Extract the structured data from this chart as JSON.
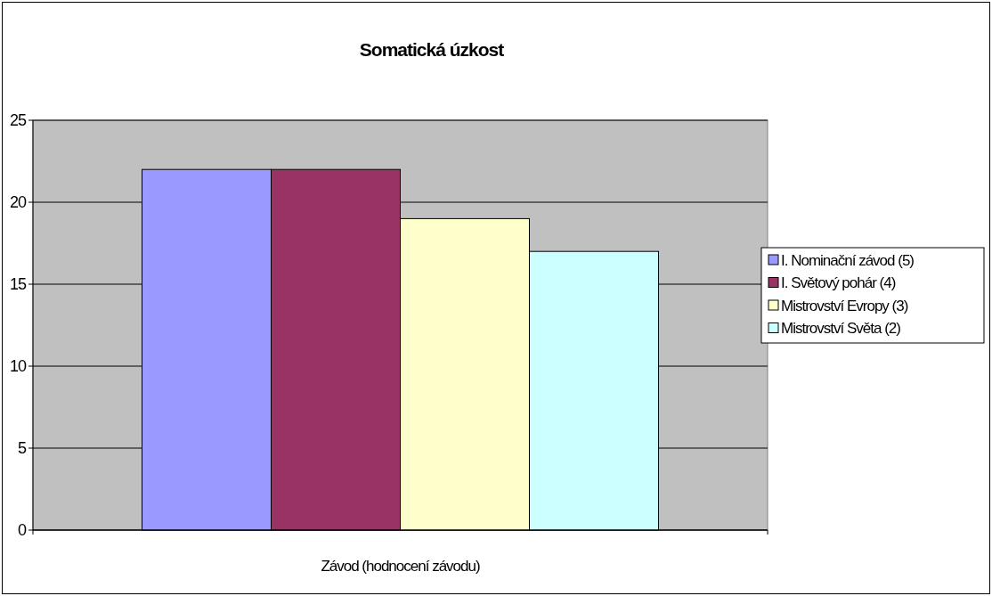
{
  "chart_data": {
    "type": "bar",
    "title": "Somatická úzkost",
    "xlabel": "Závod (hodnocení závodu)",
    "categories": [
      null
    ],
    "series": [
      {
        "name": "I. Nominační závod (5)",
        "color": "#9999ff",
        "values": [
          22
        ]
      },
      {
        "name": "I. Světový pohár (4)",
        "color": "#993366",
        "values": [
          22
        ]
      },
      {
        "name": "Mistrovství Evropy (3)",
        "color": "#ffffcc",
        "values": [
          19
        ]
      },
      {
        "name": "Mistrovství Světa (2)",
        "color": "#ccffff",
        "values": [
          17
        ]
      }
    ],
    "ylim": [
      0,
      25
    ],
    "yticks": [
      0,
      5,
      10,
      15,
      20,
      25
    ],
    "grid": "y",
    "legend": "right"
  }
}
